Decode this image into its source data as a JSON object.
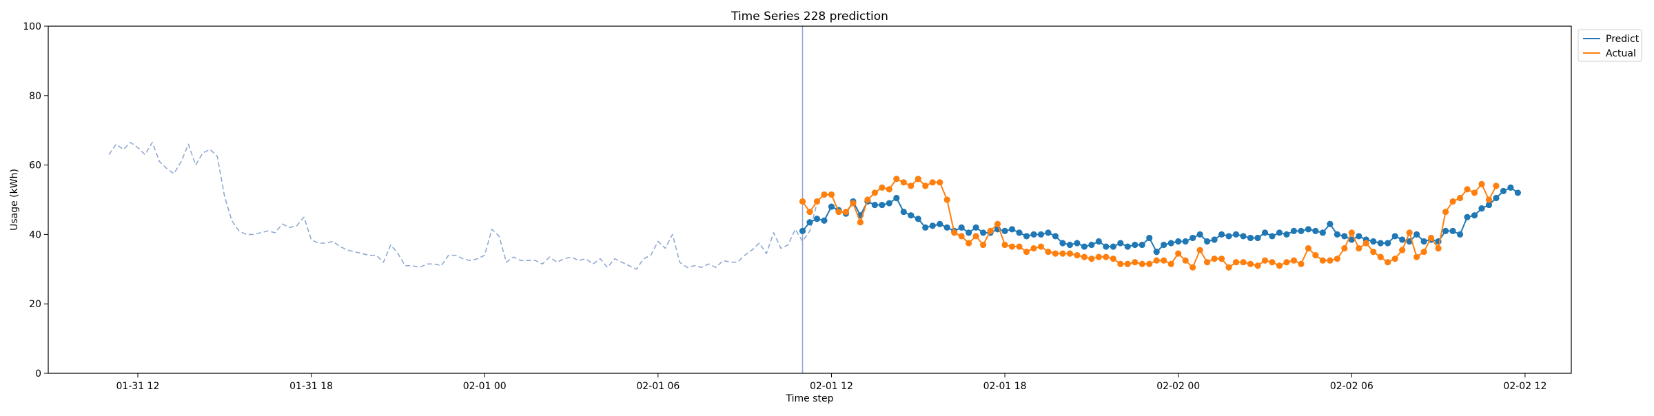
{
  "chart_data": {
    "type": "line",
    "title": "Time Series 228 prediction",
    "xlabel": "Time step",
    "ylabel": "Usage (kWh)",
    "ylim": [
      0,
      100
    ],
    "yticks": [
      0,
      20,
      40,
      60,
      80,
      100
    ],
    "xlim": [
      "2024-01-31 08:54",
      "2024-02-02 13:36"
    ],
    "xticks": [
      {
        "t": "2024-01-31 12:00",
        "label": "01-31 12"
      },
      {
        "t": "2024-01-31 18:00",
        "label": "01-31 18"
      },
      {
        "t": "2024-02-01 00:00",
        "label": "02-01 00"
      },
      {
        "t": "2024-02-01 06:00",
        "label": "02-01 06"
      },
      {
        "t": "2024-02-01 12:00",
        "label": "02-01 12"
      },
      {
        "t": "2024-02-01 18:00",
        "label": "02-01 18"
      },
      {
        "t": "2024-02-02 00:00",
        "label": "02-02 00"
      },
      {
        "t": "2024-02-02 06:00",
        "label": "02-02 06"
      },
      {
        "t": "2024-02-02 12:00",
        "label": "02-02 12"
      }
    ],
    "vline": "2024-02-01 11:00",
    "legend_position": "upper right, outside plot",
    "grid": false,
    "series": [
      {
        "name": "history",
        "style": "dashed",
        "color": "#8fa9d1",
        "start": "2024-01-31 11:00",
        "step_minutes": 15,
        "values": [
          63,
          66,
          64.5,
          66.5,
          65,
          63,
          66.5,
          61,
          59,
          57.5,
          61,
          66,
          60,
          63.5,
          64.5,
          62.5,
          51,
          44,
          41,
          40,
          40,
          40.5,
          41,
          40.5,
          43,
          42,
          42.5,
          45,
          38.5,
          37.5,
          37.5,
          38,
          36.5,
          35.5,
          35,
          34.5,
          34,
          34,
          32,
          37,
          34.5,
          31,
          31,
          30.5,
          31.5,
          31.5,
          31,
          34,
          34,
          33,
          32.5,
          33,
          34,
          41.5,
          39.5,
          32,
          33.5,
          32.5,
          32.5,
          32.5,
          31.5,
          33.5,
          32,
          33,
          33.5,
          32.5,
          33,
          31.5,
          33,
          30.5,
          33,
          32,
          31,
          30,
          33,
          34,
          38,
          36,
          40,
          32,
          30.5,
          31,
          30.5,
          31.5,
          30.5,
          32.5,
          32,
          32,
          34,
          35.5,
          37.5,
          34.5,
          40.5,
          36,
          37,
          41.5,
          38,
          41,
          49
        ]
      },
      {
        "name": "Predict",
        "style": "solid-markers",
        "color": "#1f77b4",
        "start": "2024-02-01 11:00",
        "step_minutes": 15,
        "values": [
          41,
          43.5,
          44.5,
          44,
          48,
          47,
          46,
          49.5,
          45.5,
          49.5,
          48.5,
          48.5,
          49,
          50.5,
          46.5,
          45.5,
          44.5,
          42,
          42.5,
          43,
          42,
          41,
          42,
          40.5,
          42,
          40.5,
          40.5,
          41.5,
          41,
          41.5,
          40.5,
          39.5,
          40,
          40,
          40.5,
          39.5,
          37.5,
          37,
          37.5,
          36.5,
          37,
          38,
          36.5,
          36.5,
          37.5,
          36.5,
          37,
          37,
          39,
          35,
          37,
          37.5,
          38,
          38,
          39,
          40,
          38,
          38.5,
          40,
          39.5,
          40,
          39.5,
          39,
          39,
          40.5,
          39.5,
          40.5,
          40,
          41,
          41,
          41.5,
          41,
          40.5,
          43,
          40,
          39.5,
          38.5,
          39.5,
          38.5,
          38,
          37.5,
          37.5,
          39.5,
          38.5,
          38,
          40,
          38,
          38.5,
          38,
          41,
          41,
          40,
          45,
          45.5,
          47.5,
          48.5,
          50.5,
          52.5,
          53.5,
          52
        ]
      },
      {
        "name": "Actual",
        "style": "solid-markers",
        "color": "#ff7f0e",
        "start": "2024-02-01 11:00",
        "step_minutes": 15,
        "values": [
          49.5,
          46.5,
          49.5,
          51.5,
          51.5,
          46.5,
          46.5,
          49,
          43.5,
          50,
          52,
          53.5,
          53,
          56,
          55,
          54,
          56,
          54,
          55,
          55,
          50,
          40.5,
          39.5,
          37.5,
          39.5,
          37,
          41,
          43,
          37,
          36.5,
          36.5,
          35,
          36,
          36.5,
          35,
          34.5,
          34.5,
          34.5,
          34,
          33.5,
          33,
          33.5,
          33.5,
          33,
          31.5,
          31.5,
          32,
          31.5,
          31.5,
          32.5,
          32.5,
          31.5,
          34.5,
          32.5,
          30.5,
          35.5,
          32,
          33,
          33,
          30.5,
          32,
          32,
          31.5,
          31,
          32.5,
          32,
          31,
          32,
          32.5,
          31.5,
          36,
          34,
          32.5,
          32.5,
          33,
          36,
          40.5,
          36,
          37.5,
          35,
          33.5,
          32,
          33,
          35.5,
          40.5,
          33.5,
          35,
          39,
          36,
          46.5,
          49.5,
          50.5,
          53,
          52,
          54.5,
          50,
          54
        ]
      }
    ]
  }
}
